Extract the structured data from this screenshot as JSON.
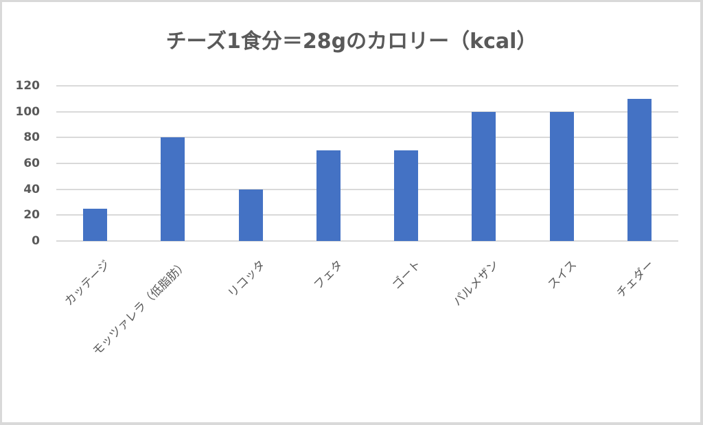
{
  "chart_data": {
    "type": "bar",
    "title": "チーズ1食分＝28gのカロリー（kcal）",
    "xlabel": "",
    "ylabel": "",
    "categories": [
      "カッテージ",
      "モッツァレラ（低脂肪）",
      "リコッタ",
      "フェタ",
      "ゴート",
      "パルメザン",
      "スイス",
      "チェダー"
    ],
    "values": [
      25,
      80,
      40,
      70,
      70,
      100,
      100,
      110
    ],
    "ylim": [
      0,
      120
    ],
    "yticks": [
      "0",
      "20",
      "40",
      "60",
      "80",
      "100",
      "120"
    ],
    "grid": true,
    "legend": "none",
    "bar_color": "#4472c4"
  }
}
